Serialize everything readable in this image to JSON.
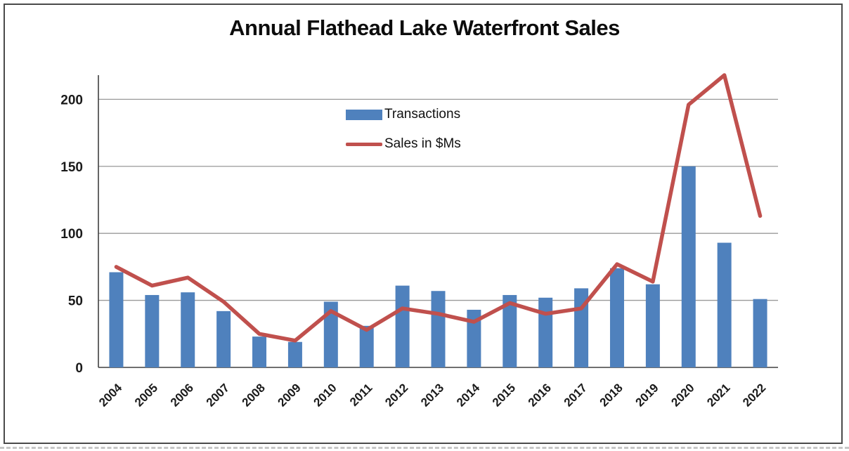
{
  "title": "Annual Flathead Lake Waterfront Sales",
  "legend": {
    "items": [
      {
        "label": "Transactions",
        "type": "bar",
        "color": "#4f81bd"
      },
      {
        "label": "Sales in $Ms",
        "type": "line",
        "color": "#c0504d"
      }
    ]
  },
  "colors": {
    "bar": "#4f81bd",
    "line": "#c0504d",
    "axis": "#404040",
    "gridline": "#999999",
    "text": "#1a1a1a"
  },
  "chart_data": {
    "type": "bar",
    "subtype": "combo-bar-line",
    "title": "Annual Flathead Lake Waterfront Sales",
    "categories": [
      "2004",
      "2005",
      "2006",
      "2007",
      "2008",
      "2009",
      "2010",
      "2011",
      "2012",
      "2013",
      "2014",
      "2015",
      "2016",
      "2017",
      "2018",
      "2019",
      "2020",
      "2021",
      "2022"
    ],
    "series": [
      {
        "name": "Transactions",
        "type": "bar",
        "color": "#4f81bd",
        "values": [
          71,
          54,
          56,
          42,
          23,
          19,
          49,
          31,
          61,
          57,
          43,
          54,
          52,
          59,
          74,
          62,
          150,
          93,
          51
        ]
      },
      {
        "name": "Sales in $Ms",
        "type": "line",
        "color": "#c0504d",
        "values": [
          75,
          61,
          67,
          49,
          25,
          20,
          42,
          28,
          44,
          40,
          34,
          48,
          40,
          44,
          77,
          64,
          196,
          218,
          113
        ]
      }
    ],
    "xlabel": "",
    "ylabel": "",
    "yticks": [
      0,
      50,
      100,
      150,
      200
    ],
    "ylim": [
      0,
      218
    ],
    "grid": true,
    "legend_position": "inside-top-center"
  }
}
